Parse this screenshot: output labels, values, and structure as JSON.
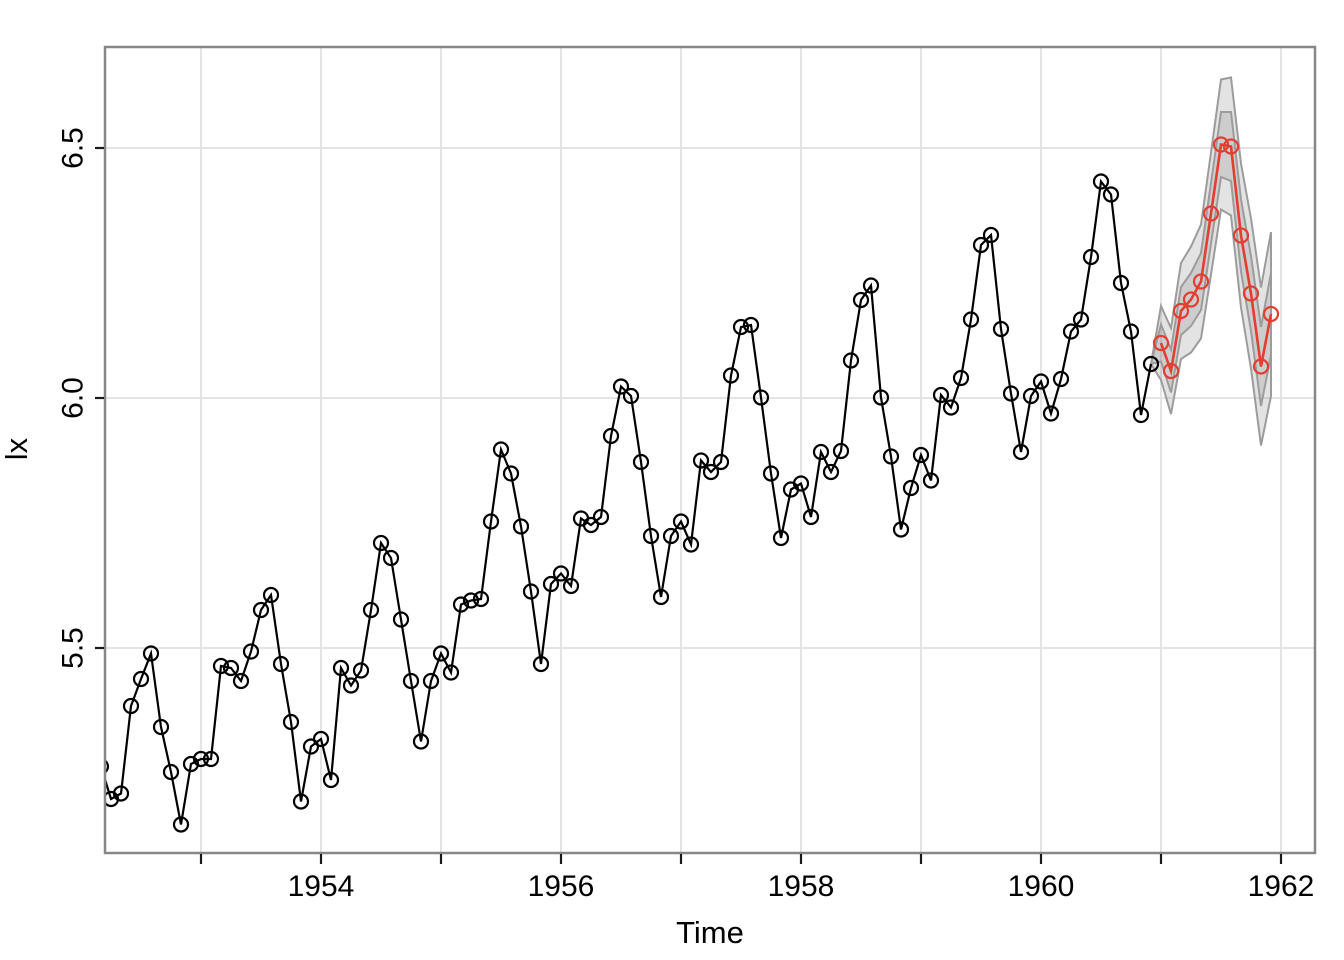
{
  "style": {
    "background": "#ffffff",
    "plot_border_color": "#878787",
    "grid_color": "#e4e4e4",
    "tick_color": "#1a1a1a",
    "text_color": "#000000",
    "observed_color": "#000000",
    "forecast_color": "#e23e32",
    "band_fill": "#808080",
    "band_fill_alpha": 0.22,
    "band_border": "#9c9c9c"
  },
  "chart_data": {
    "type": "line",
    "title": "",
    "xlabel": "Time",
    "ylabel": "lx",
    "grid": "on",
    "legend": "none",
    "xlim": [
      1952.2,
      1962.2833
    ],
    "ylim": [
      5.09,
      6.702
    ],
    "x_ticks": [
      1953,
      1954,
      1955,
      1956,
      1957,
      1958,
      1959,
      1960,
      1961,
      1962
    ],
    "x_tick_labels": [
      "",
      "1954",
      "",
      "1956",
      "",
      "1958",
      "",
      "1960",
      "",
      "1962"
    ],
    "y_ticks": [
      5.5,
      6.0,
      6.5
    ],
    "y_tick_labels": [
      "5.5",
      "6.0",
      "6.5"
    ],
    "series": [
      {
        "name": "observed",
        "marker": "open-circle",
        "color": "#000000",
        "start": 1952.1667,
        "frequency": 12,
        "values": [
          5.263,
          5.198,
          5.209,
          5.384,
          5.438,
          5.489,
          5.342,
          5.252,
          5.147,
          5.268,
          5.278,
          5.278,
          5.464,
          5.46,
          5.434,
          5.493,
          5.576,
          5.606,
          5.468,
          5.352,
          5.193,
          5.303,
          5.318,
          5.236,
          5.46,
          5.425,
          5.455,
          5.576,
          5.71,
          5.68,
          5.557,
          5.434,
          5.313,
          5.434,
          5.489,
          5.451,
          5.587,
          5.595,
          5.598,
          5.753,
          5.897,
          5.849,
          5.743,
          5.613,
          5.468,
          5.628,
          5.649,
          5.624,
          5.759,
          5.746,
          5.762,
          5.924,
          6.023,
          6.004,
          5.872,
          5.724,
          5.602,
          5.724,
          5.753,
          5.707,
          5.875,
          5.852,
          5.872,
          6.045,
          6.142,
          6.146,
          6.001,
          5.849,
          5.72,
          5.817,
          5.829,
          5.762,
          5.892,
          5.852,
          5.894,
          6.075,
          6.196,
          6.225,
          6.001,
          5.883,
          5.737,
          5.82,
          5.886,
          5.835,
          6.006,
          5.981,
          6.04,
          6.157,
          6.306,
          6.326,
          6.138,
          6.009,
          5.892,
          6.004,
          6.033,
          5.969,
          6.038,
          6.133,
          6.157,
          6.282,
          6.433,
          6.407,
          6.23,
          6.133,
          5.966,
          6.068
        ]
      },
      {
        "name": "forecast",
        "marker": "open-circle",
        "color": "#e23e32",
        "start": 1961.0,
        "frequency": 12,
        "values": [
          6.11,
          6.054,
          6.174,
          6.197,
          6.233,
          6.369,
          6.507,
          6.503,
          6.325,
          6.209,
          6.063,
          6.168
        ],
        "se": [
          0.037,
          0.043,
          0.048,
          0.053,
          0.057,
          0.061,
          0.065,
          0.069,
          0.072,
          0.075,
          0.079,
          0.082
        ]
      }
    ],
    "prediction_bands": {
      "multiples": [
        2,
        1
      ],
      "anchor_time": 1960.9167,
      "anchor_value": 6.068
    }
  }
}
